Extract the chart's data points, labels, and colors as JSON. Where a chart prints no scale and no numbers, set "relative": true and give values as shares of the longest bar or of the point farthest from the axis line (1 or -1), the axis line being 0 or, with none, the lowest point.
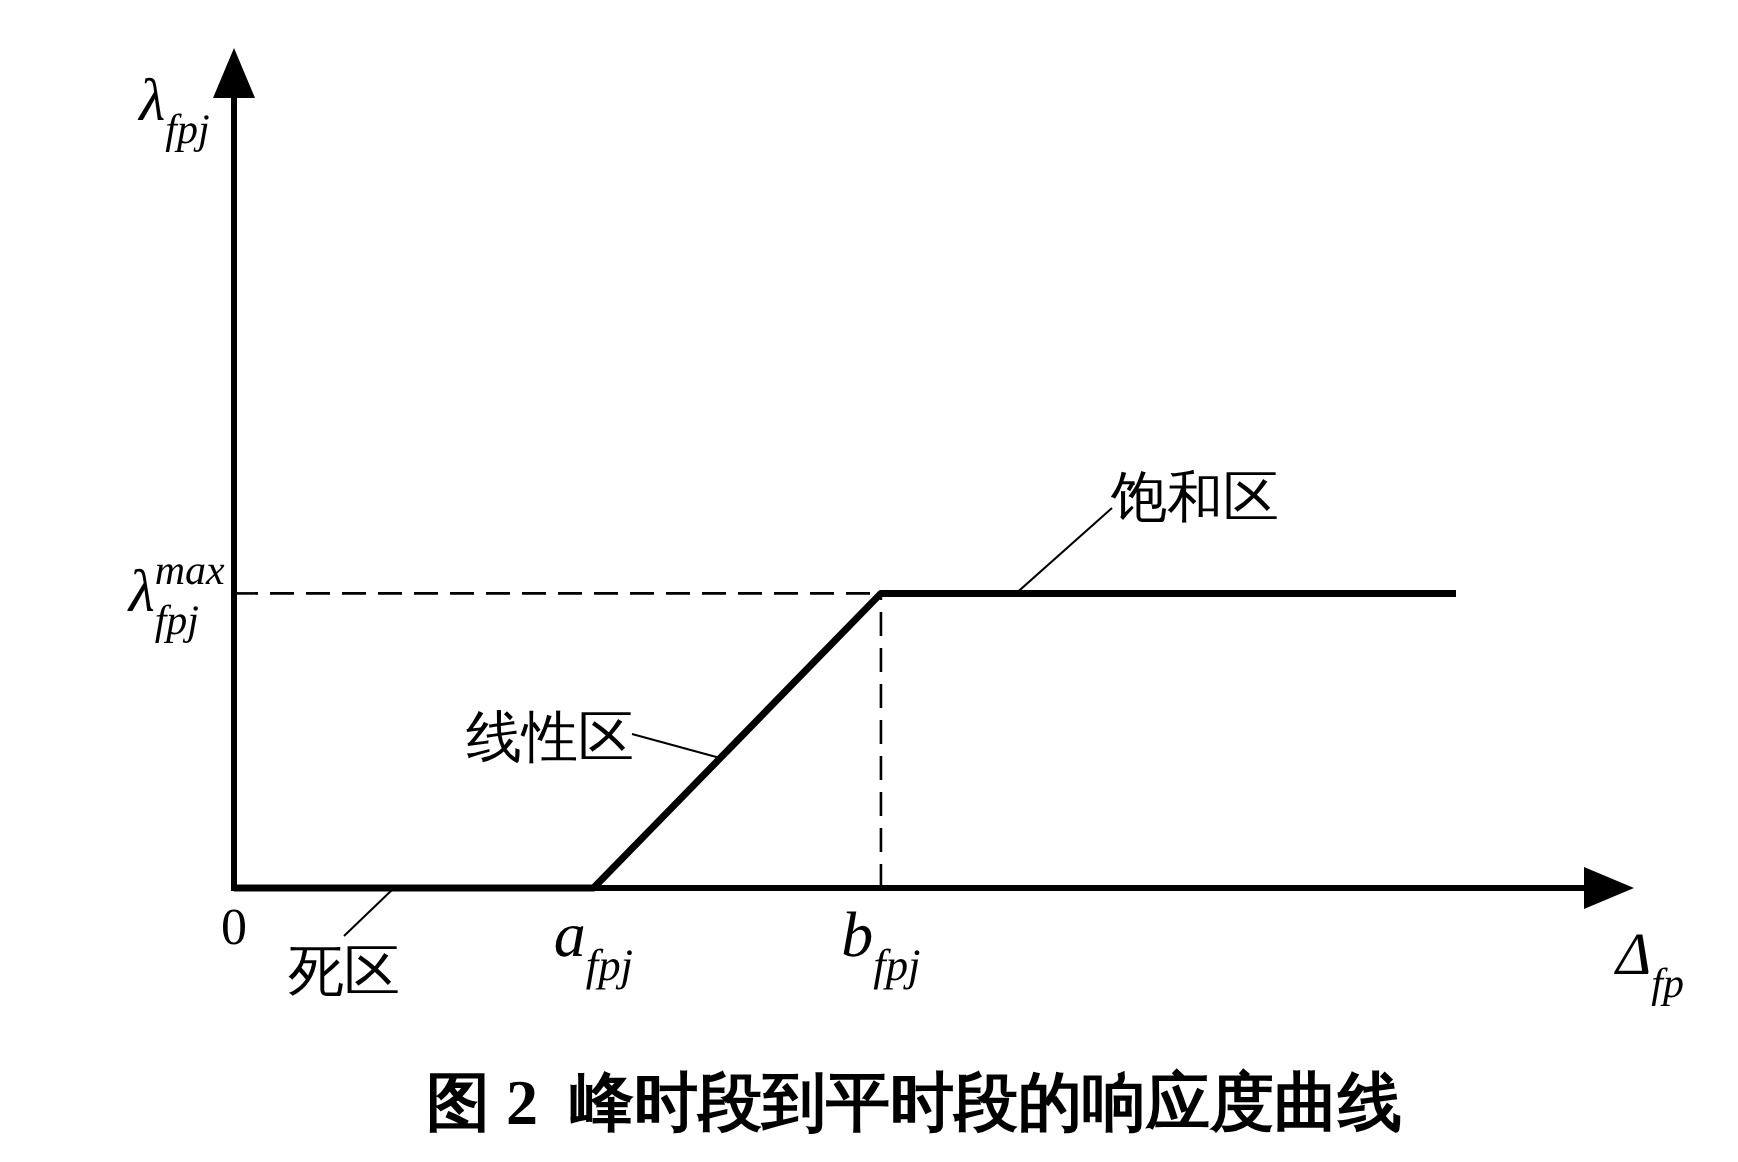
{
  "chart_data": {
    "type": "line",
    "title": "图 2  峰时段到平时段的响应度曲线",
    "xlabel": "Δ$_{fp}$",
    "relative": true,
    "categories": [
      "0",
      null,
      null,
      null,
      null,
      "a$_{fpj}$",
      null,
      null,
      null,
      "b$_{fpj}$",
      null,
      null,
      null,
      null,
      null,
      null,
      null,
      null
    ],
    "line_style": "solid",
    "series": [
      {
        "color": "#000000",
        "values": [
          0,
          0,
          0,
          0,
          0,
          0,
          0.25,
          0.5,
          0.75,
          1,
          1,
          1,
          1,
          1,
          1,
          1,
          1,
          1
        ]
      }
    ],
    "ref_lines": [
      {
        "axis": "y",
        "value": 1,
        "label": "λ$_{fpj}$$^{max}$",
        "color": "#000000",
        "line_style": "dashed"
      },
      {
        "axis": "x",
        "value": "b$_{fpj}$",
        "color": "#000000",
        "line_style": "dashed"
      }
    ],
    "annotations": [
      "λ$_{fpj}$",
      "饱和区",
      "线性区",
      "死区"
    ]
  }
}
